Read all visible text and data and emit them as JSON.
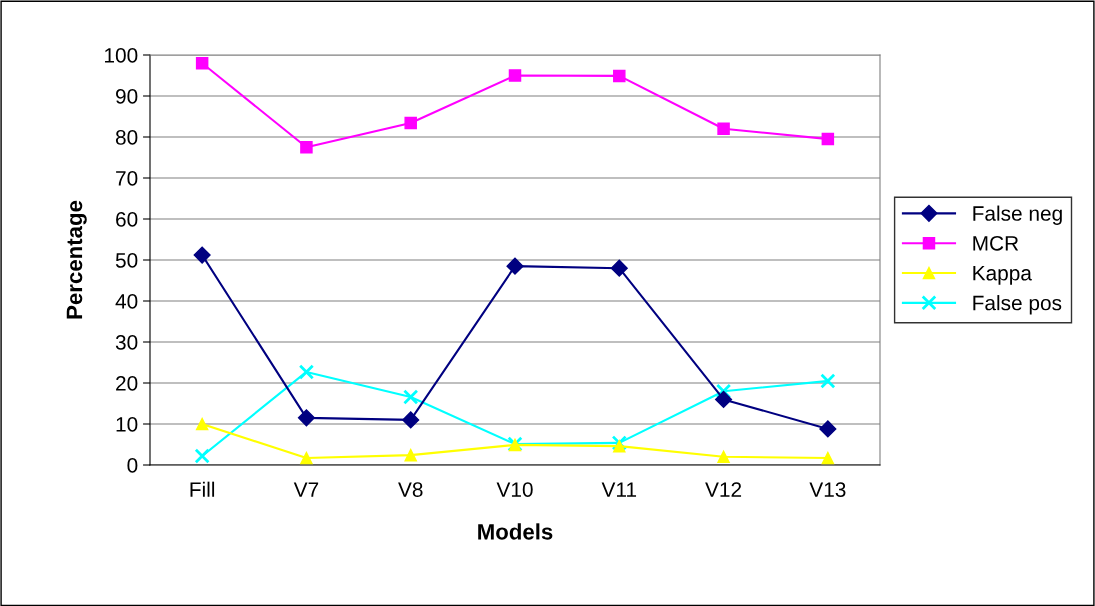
{
  "chart_data": {
    "type": "line",
    "xlabel": "Models",
    "ylabel": "Percentage",
    "categories": [
      "Fill",
      "V7",
      "V8",
      "V10",
      "V11",
      "V12",
      "V13"
    ],
    "series": [
      {
        "name": "False neg",
        "color": "#000080",
        "marker": "diamond",
        "values": [
          51.2,
          11.5,
          11,
          48.5,
          48,
          16,
          8.8
        ]
      },
      {
        "name": "MCR",
        "color": "#ff00ff",
        "marker": "square",
        "values": [
          98,
          77.5,
          83.4,
          95,
          94.9,
          82,
          79.5
        ]
      },
      {
        "name": "Kappa",
        "color": "#ffff00",
        "marker": "triangle",
        "values": [
          10,
          1.7,
          2.4,
          4.9,
          4.6,
          2,
          1.7
        ]
      },
      {
        "name": "False pos",
        "color": "#00ffff",
        "marker": "cross",
        "values": [
          2.2,
          22.7,
          16.6,
          5.1,
          5.4,
          18,
          20.5
        ]
      }
    ],
    "ylim": [
      0,
      100
    ],
    "yticks": [
      0,
      10,
      20,
      30,
      40,
      50,
      60,
      70,
      80,
      90,
      100
    ],
    "grid": "y",
    "legend": "right"
  }
}
